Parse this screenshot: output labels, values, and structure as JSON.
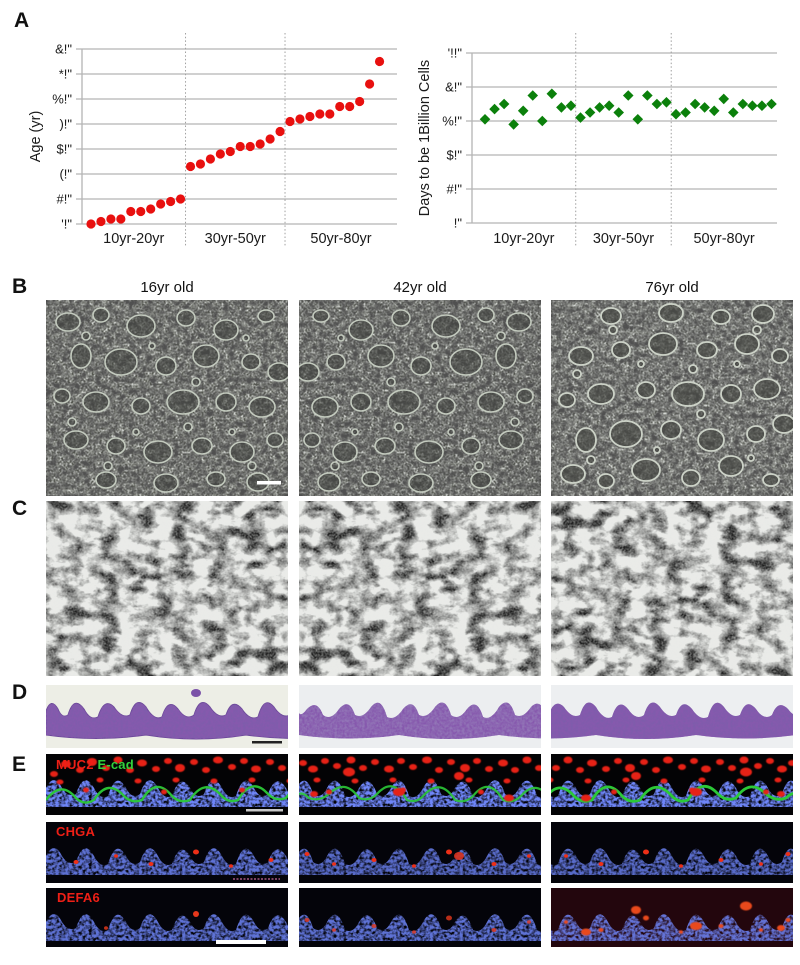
{
  "panel_labels": {
    "a": "A",
    "b": "B",
    "c": "C",
    "d": "D",
    "e": "E"
  },
  "column_titles": [
    "16yr old",
    "42yr old",
    "76yr old"
  ],
  "stains": {
    "muc2": "MUC2",
    "ecad": "E-cad",
    "chga": "CHGA",
    "defa6": "DEFA6"
  },
  "colors": {
    "red_marker": "#e8100f",
    "green_marker": "#0b800b",
    "gridline": "#b4b4b4",
    "muc2_label": "#ef1f16",
    "ecad_label": "#32d13c",
    "hne_purple": "#7e5cab"
  },
  "chart_data": [
    {
      "type": "scatter",
      "title": "",
      "xlabel": "",
      "ylabel": "Age (yr)",
      "marker": "circle",
      "color": "#e8100f",
      "ylim": [
        10,
        80
      ],
      "ytick_values": [
        10,
        20,
        30,
        40,
        50,
        60,
        70,
        80
      ],
      "ytick_labels": [
        "'!\"",
        "#!\"",
        "(!\"",
        "$!\"",
        ")!\"",
        "%!\"",
        "*!\"",
        "&!\""
      ],
      "categories": [
        "10yr-20yr",
        "30yr-50yr",
        "50yr-80yr"
      ],
      "grid": true,
      "legend": "none",
      "groups": [
        [
          10,
          11,
          12,
          12,
          15,
          15,
          16,
          18,
          19,
          20
        ],
        [
          33,
          34,
          36,
          38,
          39,
          41,
          41,
          42,
          44,
          47
        ],
        [
          51,
          52,
          53,
          54,
          54,
          57,
          57,
          59,
          66,
          75
        ]
      ]
    },
    {
      "type": "scatter",
      "title": "",
      "xlabel": "",
      "ylabel": "Days to be 1Billion Cells",
      "marker": "diamond",
      "color": "#0b800b",
      "ylim": [
        0,
        100
      ],
      "ytick_values": [
        0,
        20,
        40,
        60,
        80,
        100
      ],
      "ytick_labels": [
        "!\"",
        "#!\"",
        "$!\"",
        "%!\"",
        "&!\"",
        "'!!\""
      ],
      "categories": [
        "10yr-20yr",
        "30yr-50yr",
        "50yr-80yr"
      ],
      "grid": true,
      "legend": "none",
      "groups": [
        [
          61,
          67,
          70,
          58,
          66,
          75,
          60,
          76,
          68,
          69
        ],
        [
          62,
          65,
          68,
          69,
          65,
          75,
          61,
          75,
          70,
          71
        ],
        [
          64,
          65,
          70,
          68,
          66,
          73,
          65,
          70,
          69,
          69,
          70
        ]
      ]
    }
  ]
}
